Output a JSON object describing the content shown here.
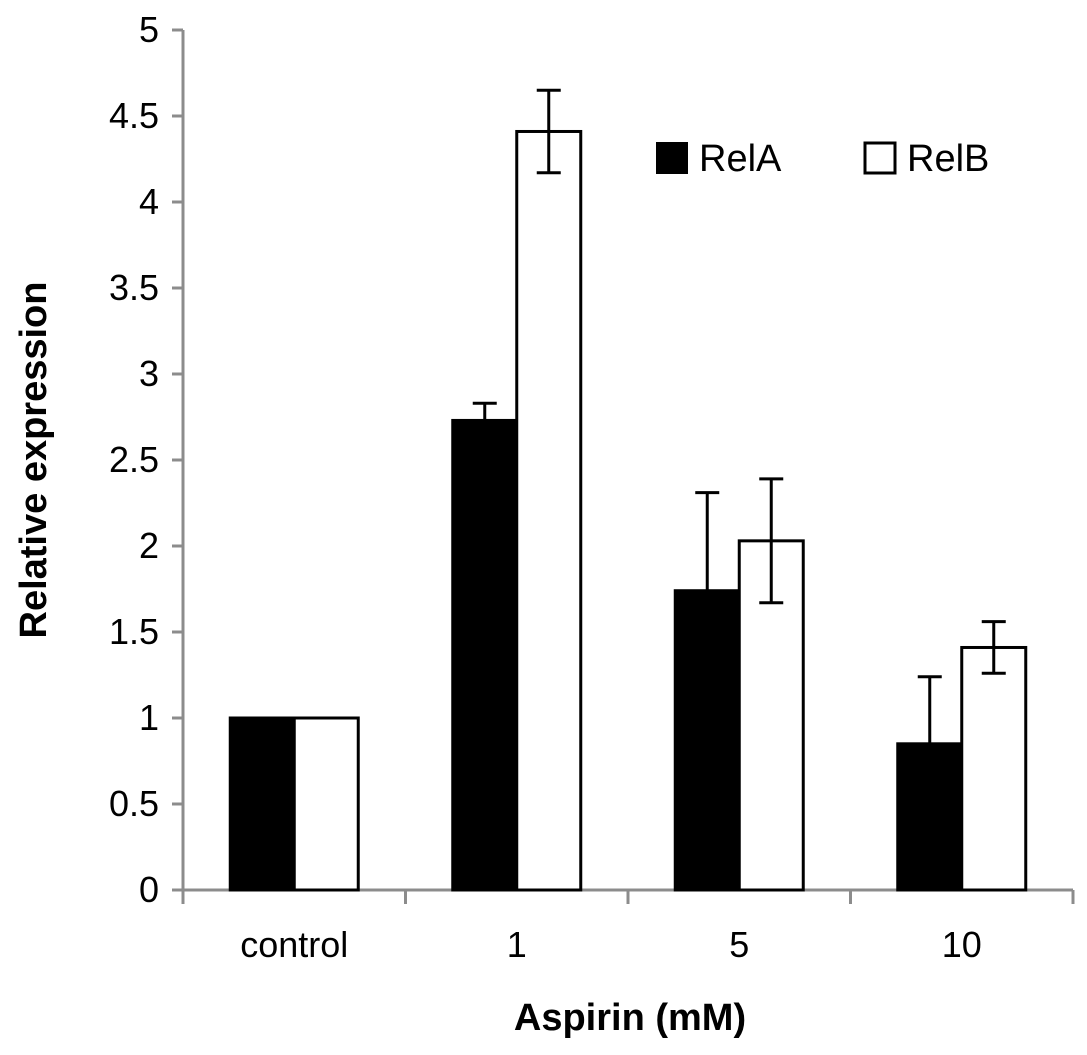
{
  "chart_data": {
    "type": "bar",
    "title": "",
    "xlabel": "Aspirin (mM)",
    "ylabel": "Relative expression",
    "categories": [
      "control",
      "1",
      "5",
      "10"
    ],
    "series": [
      {
        "name": "RelA",
        "color": "#000000",
        "values": [
          1.0,
          2.73,
          1.74,
          0.85
        ],
        "errors": [
          0.0,
          0.1,
          0.57,
          0.39
        ]
      },
      {
        "name": "RelB",
        "color": "#ffffff",
        "values": [
          1.0,
          4.41,
          2.03,
          1.41
        ],
        "errors": [
          0.0,
          0.24,
          0.36,
          0.15
        ]
      }
    ],
    "ylim": [
      0,
      5
    ],
    "yticks": [
      "0",
      "0.5",
      "1",
      "1.5",
      "2",
      "2.5",
      "3",
      "3.5",
      "4",
      "4.5",
      "5"
    ],
    "grid": false,
    "legend_position": "top-right"
  }
}
